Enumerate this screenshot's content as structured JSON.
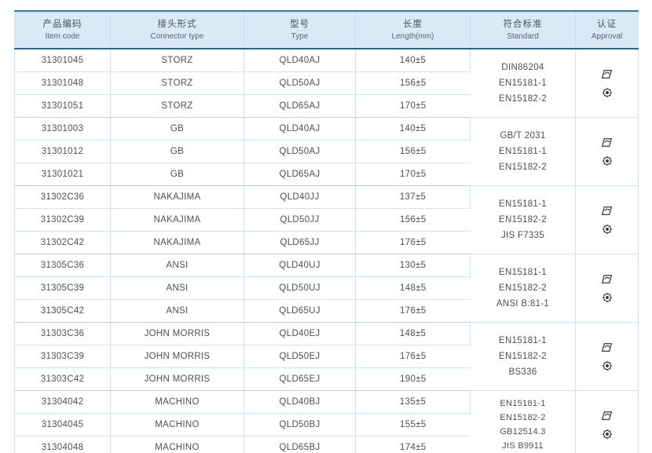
{
  "table": {
    "accent_color": "#2265ae",
    "header_bg": "#d9eaf7",
    "columns": [
      {
        "zh": "产品编码",
        "en": "Item code"
      },
      {
        "zh": "接头形式",
        "en": "Connector type"
      },
      {
        "zh": "型号",
        "en": "Type"
      },
      {
        "zh": "长度",
        "en": "Length(mm)"
      },
      {
        "zh": "符合标准",
        "en": "Standard"
      },
      {
        "zh": "认证",
        "en": "Approval"
      }
    ],
    "groups": [
      {
        "rows": [
          {
            "item_code": "31301045",
            "connector_type": "STORZ",
            "type": "QLD40AJ",
            "length": "140±5"
          },
          {
            "item_code": "31301048",
            "connector_type": "STORZ",
            "type": "QLD50AJ",
            "length": "156±5"
          },
          {
            "item_code": "31301051",
            "connector_type": "STORZ",
            "type": "QLD65AJ",
            "length": "170±5"
          }
        ],
        "standards": [
          "DIN86204",
          "EN15181-1",
          "EN15182-2"
        ],
        "approval_icons": [
          "certificate",
          "wheelmark"
        ]
      },
      {
        "rows": [
          {
            "item_code": "31301003",
            "connector_type": "GB",
            "type": "QLD40AJ",
            "length": "140±5"
          },
          {
            "item_code": "31301012",
            "connector_type": "GB",
            "type": "QLD50AJ",
            "length": "156±5"
          },
          {
            "item_code": "31301021",
            "connector_type": "GB",
            "type": "QLD65AJ",
            "length": "170±5"
          }
        ],
        "standards": [
          "GB/T 2031",
          "EN15181-1",
          "EN15182-2"
        ],
        "approval_icons": [
          "certificate",
          "wheelmark"
        ]
      },
      {
        "rows": [
          {
            "item_code": "31302C36",
            "connector_type": "NAKAJIMA",
            "type": "QLD40JJ",
            "length": "137±5"
          },
          {
            "item_code": "31302C39",
            "connector_type": "NAKAJIMA",
            "type": "QLD50JJ",
            "length": "156±5"
          },
          {
            "item_code": "31302C42",
            "connector_type": "NAKAJIMA",
            "type": "QLD65JJ",
            "length": "176±5"
          }
        ],
        "standards": [
          "EN15181-1",
          "EN15182-2",
          "JIS F7335"
        ],
        "approval_icons": [
          "certificate",
          "wheelmark"
        ]
      },
      {
        "rows": [
          {
            "item_code": "31305C36",
            "connector_type": "ANSI",
            "type": "QLD40UJ",
            "length": "130±5"
          },
          {
            "item_code": "31305C39",
            "connector_type": "ANSI",
            "type": "QLD50UJ",
            "length": "148±5"
          },
          {
            "item_code": "31305C42",
            "connector_type": "ANSI",
            "type": "QLD65UJ",
            "length": "176±5"
          }
        ],
        "standards": [
          "EN15181-1",
          "EN15182-2",
          "ANSI B:81-1"
        ],
        "approval_icons": [
          "certificate",
          "wheelmark"
        ]
      },
      {
        "rows": [
          {
            "item_code": "31303C36",
            "connector_type": "JOHN MORRIS",
            "type": "QLD40EJ",
            "length": "148±5"
          },
          {
            "item_code": "31303C39",
            "connector_type": "JOHN MORRIS",
            "type": "QLD50EJ",
            "length": "176±5"
          },
          {
            "item_code": "31303C42",
            "connector_type": "JOHN MORRIS",
            "type": "QLD65EJ",
            "length": "190±5"
          }
        ],
        "standards": [
          "EN15181-1",
          "EN15182-2",
          "BS336"
        ],
        "approval_icons": [
          "certificate",
          "wheelmark"
        ]
      },
      {
        "rows": [
          {
            "item_code": "31304042",
            "connector_type": "MACHINO",
            "type": "QLD40BJ",
            "length": "135±5"
          },
          {
            "item_code": "31304045",
            "connector_type": "MACHINO",
            "type": "QLD50BJ",
            "length": "155±5"
          },
          {
            "item_code": "31304048",
            "connector_type": "MACHINO",
            "type": "QLD65BJ",
            "length": "174±5"
          }
        ],
        "standards": [
          "EN15181-1",
          "EN15182-2",
          "GB12514.3",
          "JIS B9911"
        ],
        "approval_icons": [
          "certificate",
          "wheelmark"
        ]
      }
    ]
  }
}
